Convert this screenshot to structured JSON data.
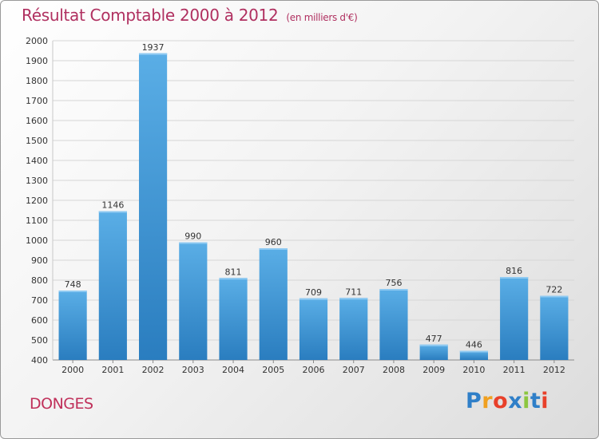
{
  "title": "Résultat Comptable 2000 à 2012",
  "unit": "(en milliers d'€)",
  "city": "DONGES",
  "logo": {
    "letters": [
      "P",
      "r",
      "o",
      "x",
      "i",
      "t",
      "i"
    ],
    "colors": [
      "#2f7fc8",
      "#f0a020",
      "#e8402a",
      "#2f7fc8",
      "#8cc640",
      "#2f7fc8",
      "#e8402a"
    ]
  },
  "colors": {
    "bar_light": "#5aaee6",
    "bar_dark": "#2a7dbf",
    "title": "#b03060"
  },
  "chart_data": {
    "type": "bar",
    "categories": [
      "2000",
      "2001",
      "2002",
      "2003",
      "2004",
      "2005",
      "2006",
      "2007",
      "2008",
      "2009",
      "2010",
      "2011",
      "2012"
    ],
    "values": [
      748,
      1146,
      1937,
      990,
      811,
      960,
      709,
      711,
      756,
      477,
      446,
      816,
      722
    ],
    "ylim": [
      400,
      2000
    ],
    "yticks": [
      400,
      500,
      600,
      700,
      800,
      900,
      1000,
      1100,
      1200,
      1300,
      1400,
      1500,
      1600,
      1700,
      1800,
      1900,
      2000
    ],
    "grid": true,
    "title": "Résultat Comptable 2000 à 2012",
    "xlabel": "",
    "ylabel": ""
  }
}
